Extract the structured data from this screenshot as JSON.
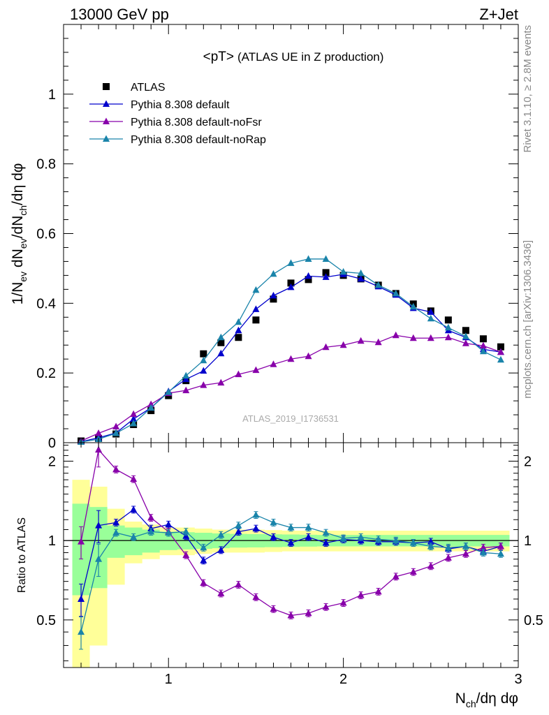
{
  "header": {
    "left_label": "13000 GeV pp",
    "right_label": "Z+Jet"
  },
  "side_labels": {
    "rivet": "Rivet 3.1.10, ≥ 2.8M events",
    "mcplots": "mcplots.cern.ch [arXiv:1306.3436]"
  },
  "watermark": "ATLAS_2019_I1736531",
  "chart_data": [
    {
      "type": "line",
      "panel": "main",
      "title": "<pT>",
      "subtitle": "(ATLAS UE in Z production)",
      "ylabel": "1/N_ev dN_ev/dN_ch/dη dφ",
      "xlim": [
        0.4,
        3.0
      ],
      "ylim": [
        0,
        1.2
      ],
      "yticks": [
        0,
        0.2,
        0.4,
        0.6,
        0.8,
        1
      ],
      "ytick_labels": [
        "0",
        "0.2",
        "0.4",
        "0.6",
        "0.8",
        "1"
      ],
      "legend_position": "top-left",
      "x": [
        0.5,
        0.6,
        0.7,
        0.8,
        0.9,
        1.0,
        1.1,
        1.2,
        1.3,
        1.4,
        1.5,
        1.6,
        1.7,
        1.8,
        1.9,
        2.0,
        2.1,
        2.2,
        2.3,
        2.4,
        2.5,
        2.6,
        2.7,
        2.8,
        2.9
      ],
      "series": [
        {
          "name": "ATLAS",
          "color": "#000000",
          "marker": "square",
          "values": [
            0.005,
            0.012,
            0.025,
            0.052,
            0.092,
            0.135,
            0.178,
            0.255,
            0.287,
            0.302,
            0.352,
            0.412,
            0.458,
            0.468,
            0.488,
            0.48,
            0.47,
            0.452,
            0.428,
            0.398,
            0.378,
            0.352,
            0.322,
            0.298,
            0.275
          ]
        },
        {
          "name": "Pythia 8.308 default",
          "color": "#0000cc",
          "marker": "triangle",
          "values": [
            0.003,
            0.014,
            0.028,
            0.068,
            0.1,
            0.147,
            0.182,
            0.206,
            0.256,
            0.322,
            0.383,
            0.422,
            0.446,
            0.478,
            0.475,
            0.483,
            0.47,
            0.448,
            0.424,
            0.386,
            0.375,
            0.322,
            0.302,
            0.268,
            0.26
          ]
        },
        {
          "name": "Pythia 8.308 default-noFsr",
          "color": "#8800aa",
          "marker": "triangle",
          "values": [
            0.005,
            0.027,
            0.046,
            0.082,
            0.11,
            0.142,
            0.15,
            0.165,
            0.172,
            0.196,
            0.208,
            0.225,
            0.24,
            0.248,
            0.274,
            0.28,
            0.292,
            0.288,
            0.308,
            0.3,
            0.3,
            0.302,
            0.285,
            0.278,
            0.26
          ]
        },
        {
          "name": "Pythia 8.308 default-noRap",
          "color": "#1a84aa",
          "marker": "triangle",
          "values": [
            0.002,
            0.01,
            0.027,
            0.055,
            0.1,
            0.145,
            0.192,
            0.236,
            0.302,
            0.346,
            0.438,
            0.484,
            0.515,
            0.527,
            0.527,
            0.49,
            0.486,
            0.452,
            0.428,
            0.39,
            0.356,
            0.33,
            0.305,
            0.262,
            0.238
          ]
        }
      ]
    },
    {
      "type": "line",
      "panel": "ratio",
      "ylabel": "Ratio to ATLAS",
      "xlabel": "N_ch/dη dφ",
      "xlim": [
        0.4,
        3.0
      ],
      "ylim": [
        0.33,
        2.35
      ],
      "log_y": true,
      "xticks": [
        1,
        2,
        3
      ],
      "xtick_labels": [
        "1",
        "2",
        "3"
      ],
      "yticks": [
        0.5,
        1,
        2
      ],
      "ytick_labels": [
        "0.5",
        "1",
        "2"
      ],
      "x": [
        0.5,
        0.6,
        0.7,
        0.8,
        0.9,
        1.0,
        1.1,
        1.2,
        1.3,
        1.4,
        1.5,
        1.6,
        1.7,
        1.8,
        1.9,
        2.0,
        2.1,
        2.2,
        2.3,
        2.4,
        2.5,
        2.6,
        2.7,
        2.8,
        2.9
      ],
      "bands": {
        "stat_green_half_width": [
          0.38,
          0.34,
          0.14,
          0.12,
          0.1,
          0.08,
          0.075,
          0.07,
          0.065,
          0.06,
          0.058,
          0.056,
          0.054,
          0.052,
          0.05,
          0.05,
          0.05,
          0.05,
          0.05,
          0.05,
          0.05,
          0.05,
          0.05,
          0.05,
          0.05
        ],
        "total_yellow_half_width": [
          0.7,
          0.6,
          0.32,
          0.18,
          0.15,
          0.12,
          0.12,
          0.11,
          0.1,
          0.1,
          0.1,
          0.095,
          0.09,
          0.09,
          0.09,
          0.09,
          0.09,
          0.09,
          0.09,
          0.09,
          0.09,
          0.09,
          0.09,
          0.09,
          0.09
        ]
      },
      "series": [
        {
          "name": "Pythia 8.308 default",
          "color": "#0000cc",
          "values": [
            0.6,
            1.14,
            1.17,
            1.31,
            1.11,
            1.15,
            1.04,
            0.84,
            0.92,
            1.08,
            1.11,
            1.03,
            0.98,
            1.03,
            0.98,
            1.01,
            1.0,
            0.99,
            0.99,
            0.98,
            0.99,
            0.93,
            0.95,
            0.91,
            0.95
          ]
        },
        {
          "name": "Pythia 8.308 default-noFsr",
          "color": "#8800aa",
          "values": [
            0.99,
            2.21,
            1.86,
            1.71,
            1.22,
            1.08,
            0.88,
            0.69,
            0.63,
            0.68,
            0.61,
            0.55,
            0.52,
            0.53,
            0.56,
            0.58,
            0.62,
            0.64,
            0.73,
            0.76,
            0.8,
            0.86,
            0.89,
            0.94,
            0.95
          ]
        },
        {
          "name": "Pythia 8.308 default-noRap",
          "color": "#1a84aa",
          "values": [
            0.45,
            0.85,
            1.07,
            1.03,
            1.08,
            1.07,
            1.08,
            0.94,
            1.05,
            1.14,
            1.25,
            1.17,
            1.12,
            1.12,
            1.07,
            1.02,
            1.03,
            1.01,
            1.0,
            0.98,
            0.95,
            0.94,
            0.95,
            0.9,
            0.89
          ]
        }
      ]
    }
  ]
}
